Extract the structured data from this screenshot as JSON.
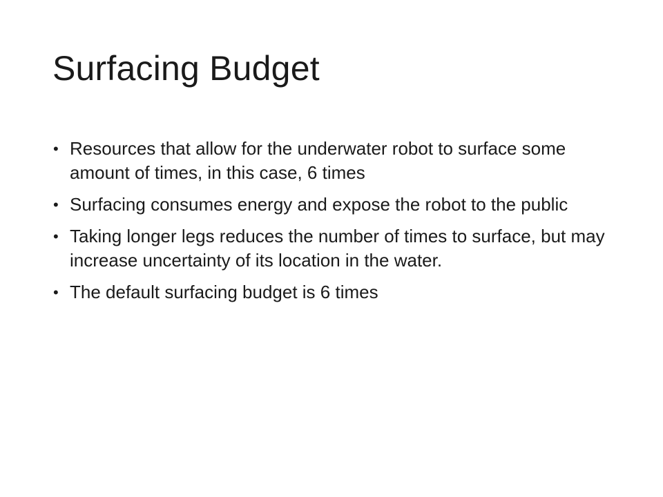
{
  "slide": {
    "title": "Surfacing Budget",
    "bullets": [
      {
        "text": "Resources that allow for the underwater robot to surface some amount of times, in this case, 6 times"
      },
      {
        "text": "Surfacing consumes energy and expose the robot to the public"
      },
      {
        "text": "Taking longer legs reduces the number of times to surface, but may increase uncertainty of its location in the water."
      },
      {
        "text": "The default surfacing budget is 6 times"
      }
    ],
    "bullet_glyph": "•"
  }
}
